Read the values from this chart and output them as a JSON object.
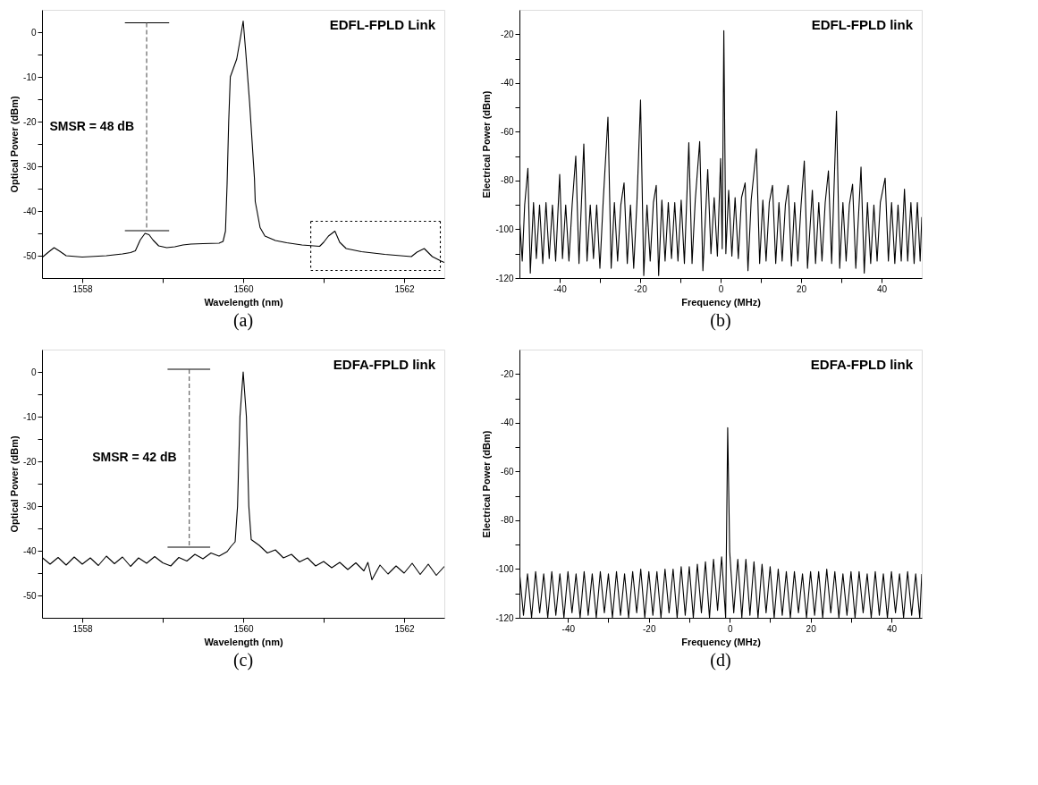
{
  "chart_data": [
    {
      "type": "line",
      "title": "(a)",
      "xlabel": "Wavelength (nm)",
      "ylabel": "Optical Power (dBm)",
      "xlim": [
        1557.5,
        1562.5
      ],
      "ylim": [
        -55,
        5
      ],
      "xticks": [
        1558,
        {
          "value": 1559,
          "label": null
        },
        1560,
        {
          "value": 1561,
          "label": null
        },
        1562
      ],
      "yticks": [
        -50,
        {
          "value": -45,
          "label": null
        },
        -40,
        {
          "value": -35,
          "label": null
        },
        -30,
        {
          "value": -25,
          "label": null
        },
        -20,
        {
          "value": -15,
          "label": null
        },
        -10,
        {
          "value": -5,
          "label": null
        },
        0
      ],
      "annotations": [
        "EDFL-FPLD Link",
        "SMSR = 48 dB"
      ],
      "series": [
        {
          "color": "#000000",
          "x": [
            1557.5,
            1557.58,
            1557.65,
            1557.72,
            1557.8,
            1558.0,
            1558.3,
            1558.5,
            1558.6,
            1558.66,
            1558.72,
            1558.78,
            1558.83,
            1558.88,
            1558.95,
            1559.05,
            1559.15,
            1559.25,
            1559.35,
            1559.5,
            1559.7,
            1559.75,
            1559.78,
            1559.8,
            1559.82,
            1559.84,
            1559.88,
            1559.92,
            1559.97,
            1560.0,
            1560.03,
            1560.08,
            1560.14,
            1560.15,
            1560.17,
            1560.21,
            1560.27,
            1560.4,
            1560.54,
            1560.73,
            1560.95,
            1561.0,
            1561.06,
            1561.14,
            1561.2,
            1561.28,
            1561.47,
            1561.76,
            1562.09,
            1562.16,
            1562.25,
            1562.35,
            1562.46,
            1562.5
          ],
          "values": [
            -50.4,
            -49.2,
            -48.2,
            -49.0,
            -50.0,
            -50.3,
            -50.0,
            -49.6,
            -49.3,
            -48.9,
            -46.5,
            -45.0,
            -45.3,
            -46.5,
            -47.8,
            -48.2,
            -48.0,
            -47.6,
            -47.4,
            -47.3,
            -47.2,
            -46.8,
            -44.5,
            -34,
            -20,
            -10,
            -8,
            -6,
            -0.8,
            2.5,
            -4,
            -15.8,
            -32.7,
            -37.9,
            -39.8,
            -43.7,
            -45.6,
            -46.6,
            -47.1,
            -47.6,
            -47.9,
            -47,
            -45.6,
            -44.5,
            -47,
            -48.4,
            -49.1,
            -49.7,
            -50.2,
            -49.2,
            -48.4,
            -50.2,
            -51.2,
            -51.5
          ]
        },
        {
          "color": "#000000",
          "x": [
            1558.53,
            1559.08
          ],
          "values": [
            2.1,
            2.1
          ]
        },
        {
          "color": "#000000",
          "x": [
            1558.53,
            1559.08
          ],
          "values": [
            -44.4,
            -44.4
          ]
        },
        {
          "color": "#555555",
          "line_style": "dashed",
          "x": [
            1558.8,
            1558.8
          ],
          "values": [
            2.1,
            -44.4
          ]
        },
        {
          "color": "#000000",
          "line_style": "dotted",
          "x": [
            1560.84,
            1562.45
          ],
          "values": [
            -42.3,
            -42.3
          ]
        },
        {
          "color": "#000000",
          "line_style": "dotted",
          "x": [
            1560.84,
            1562.45
          ],
          "values": [
            -53.3,
            -53.3
          ]
        },
        {
          "color": "#000000",
          "line_style": "dotted",
          "x": [
            1560.84,
            1560.84
          ],
          "values": [
            -42.3,
            -53.3
          ]
        },
        {
          "color": "#000000",
          "line_style": "dotted",
          "x": [
            1562.45,
            1562.45
          ],
          "values": [
            -42.3,
            -53.3
          ]
        }
      ]
    },
    {
      "type": "line",
      "title": "(b)",
      "xlabel": "Frequency (MHz)",
      "ylabel": "Electrical Power (dBm)",
      "xlim": [
        -50,
        50
      ],
      "ylim": [
        -120,
        -10
      ],
      "xticks": [
        -40,
        {
          "value": -30,
          "label": null
        },
        -20,
        {
          "value": -10,
          "label": null
        },
        0,
        {
          "value": 10,
          "label": null
        },
        20,
        {
          "value": 30,
          "label": null
        },
        40
      ],
      "yticks": [
        -120,
        {
          "value": -110,
          "label": null
        },
        -100,
        {
          "value": -90,
          "label": null
        },
        -80,
        {
          "value": -70,
          "label": null
        },
        -60,
        {
          "value": -50,
          "label": null
        },
        -40,
        {
          "value": -30,
          "label": null
        },
        -20
      ],
      "annotations": [
        "EDFL-FPLD link"
      ],
      "series": [
        {
          "color": "#000000",
          "x": [
            -50,
            -49.3,
            -48.7,
            -47.9,
            -47.3,
            -46.5,
            -45.8,
            -45,
            -44.2,
            -43.4,
            -42.6,
            -41.8,
            -41,
            -40,
            -39.3,
            -38.5,
            -37.7,
            -36.9,
            -36,
            -35.2,
            -34,
            -33.2,
            -32.4,
            -31.6,
            -30.8,
            -30,
            -29.2,
            -28,
            -27.2,
            -26.4,
            -25.6,
            -24.8,
            -24,
            -23.2,
            -22.4,
            -21.6,
            -20.8,
            -19.9,
            -19.1,
            -18.3,
            -17.5,
            -16.7,
            -16,
            -15.4,
            -14.6,
            -13.8,
            -13,
            -12.2,
            -11.4,
            -10.6,
            -9.8,
            -9,
            -7.9,
            -7.1,
            -6.3,
            -5.2,
            -4.4,
            -3.2,
            -2.4,
            -1.6,
            -0.8,
            0,
            0.4,
            0.8,
            1.3,
            2,
            2.8,
            3.6,
            4.4,
            5.2,
            6.1,
            6.8,
            7.6,
            8.9,
            9.7,
            10.5,
            11.3,
            12.1,
            12.9,
            13.7,
            14.5,
            15.3,
            16.1,
            16.8,
            17.6,
            18.4,
            19.2,
            20,
            20.8,
            21.6,
            22.8,
            23.6,
            24.4,
            25.2,
            26,
            26.8,
            27.6,
            28.8,
            29.6,
            30.4,
            31.2,
            32,
            32.8,
            33.6,
            34.9,
            35.7,
            36.5,
            37.3,
            38.1,
            38.9,
            39.7,
            40.9,
            41.7,
            42.5,
            43.3,
            44.1,
            44.9,
            45.7,
            46.5,
            47.3,
            48.1,
            48.9,
            49.6,
            50
          ],
          "values": [
            -95,
            -113,
            -90,
            -75,
            -118,
            -89,
            -112,
            -90,
            -114,
            -89,
            -112,
            -90,
            -113,
            -77.5,
            -112,
            -90,
            -113,
            -90,
            -70,
            -114,
            -65,
            -113,
            -90,
            -112,
            -90,
            -116,
            -89,
            -54,
            -116,
            -89,
            -113,
            -90,
            -81,
            -114,
            -90,
            -116,
            -89,
            -47,
            -119,
            -90,
            -113,
            -89,
            -82,
            -119,
            -88,
            -113,
            -89,
            -112,
            -89,
            -113,
            -88,
            -114,
            -64.5,
            -114,
            -88,
            -64,
            -117,
            -75.5,
            -110,
            -87,
            -111,
            -71,
            -108,
            -18.5,
            -110,
            -84,
            -111,
            -87,
            -112,
            -87,
            -81,
            -117,
            -88,
            -67,
            -114,
            -88,
            -113,
            -89,
            -82,
            -114,
            -89,
            -113,
            -90,
            -82,
            -115,
            -89,
            -113,
            -90,
            -72,
            -116,
            -84,
            -114,
            -89,
            -113,
            -89,
            -76,
            -114,
            -51.5,
            -116,
            -89,
            -113,
            -90,
            -81.5,
            -116,
            -74.5,
            -118,
            -89,
            -114,
            -90,
            -113,
            -89,
            -79,
            -113,
            -89,
            -114,
            -90,
            -113,
            -83.5,
            -113,
            -89,
            -114,
            -89,
            -113,
            -95
          ]
        }
      ]
    },
    {
      "type": "line",
      "title": "(c)",
      "xlabel": "Wavelength (nm)",
      "ylabel": "Optical Power (dBm)",
      "xlim": [
        1557.5,
        1562.5
      ],
      "ylim": [
        -55,
        5
      ],
      "xticks": [
        1558,
        {
          "value": 1559,
          "label": null
        },
        1560,
        {
          "value": 1561,
          "label": null
        },
        1562
      ],
      "yticks": [
        -50,
        {
          "value": -45,
          "label": null
        },
        -40,
        {
          "value": -35,
          "label": null
        },
        -30,
        {
          "value": -25,
          "label": null
        },
        -20,
        {
          "value": -15,
          "label": null
        },
        -10,
        {
          "value": -5,
          "label": null
        },
        0
      ],
      "annotations": [
        "EDFA-FPLD link",
        "SMSR = 42 dB"
      ],
      "series": [
        {
          "color": "#000000",
          "x": [
            1557.5,
            1557.6,
            1557.7,
            1557.8,
            1557.9,
            1558.0,
            1558.1,
            1558.2,
            1558.3,
            1558.4,
            1558.5,
            1558.6,
            1558.7,
            1558.8,
            1558.9,
            1559.0,
            1559.1,
            1559.2,
            1559.3,
            1559.4,
            1559.5,
            1559.6,
            1559.7,
            1559.8,
            1559.85,
            1559.9,
            1559.93,
            1559.96,
            1560.0,
            1560.04,
            1560.07,
            1560.1,
            1560.2,
            1560.3,
            1560.4,
            1560.5,
            1560.6,
            1560.7,
            1560.8,
            1560.9,
            1561.0,
            1561.1,
            1561.2,
            1561.3,
            1561.4,
            1561.5,
            1561.55,
            1561.6,
            1561.7,
            1561.8,
            1561.9,
            1562.0,
            1562.1,
            1562.2,
            1562.3,
            1562.4,
            1562.5
          ],
          "values": [
            -41.5,
            -43,
            -41.5,
            -43.2,
            -41.4,
            -43,
            -41.6,
            -43.3,
            -41.2,
            -42.9,
            -41.4,
            -43.5,
            -41.6,
            -42.8,
            -41.3,
            -42.7,
            -43.4,
            -41.5,
            -42.3,
            -40.8,
            -41.8,
            -40.5,
            -41.2,
            -40.2,
            -39,
            -38,
            -30,
            -10,
            0,
            -10,
            -30,
            -37.5,
            -38.8,
            -40.5,
            -39.8,
            -41.6,
            -40.8,
            -42.5,
            -41.6,
            -43.4,
            -42.4,
            -43.8,
            -42.6,
            -44.2,
            -42.7,
            -44.5,
            -42.6,
            -46.5,
            -43.2,
            -45.2,
            -43.4,
            -45,
            -42.8,
            -45.3,
            -43,
            -45.5,
            -43.5
          ]
        },
        {
          "color": "#000000",
          "x": [
            1559.06,
            1559.59
          ],
          "values": [
            0.6,
            0.6
          ]
        },
        {
          "color": "#000000",
          "x": [
            1559.06,
            1559.59
          ],
          "values": [
            -39.2,
            -39.2
          ]
        },
        {
          "color": "#555555",
          "line_style": "dashed",
          "x": [
            1559.33,
            1559.33
          ],
          "values": [
            0.6,
            -38.8
          ]
        }
      ]
    },
    {
      "type": "line",
      "title": "(d)",
      "xlabel": "Frequency (MHz)",
      "ylabel": "Electrical Power (dBm)",
      "xlim": [
        -52,
        47.5
      ],
      "ylim": [
        -120,
        -10
      ],
      "xticks": [
        -40,
        {
          "value": -30,
          "label": null
        },
        -20,
        {
          "value": -10,
          "label": null
        },
        0,
        {
          "value": 10,
          "label": null
        },
        20,
        {
          "value": 30,
          "label": null
        },
        40
      ],
      "yticks": [
        -120,
        {
          "value": -110,
          "label": null
        },
        -100,
        {
          "value": -90,
          "label": null
        },
        -80,
        {
          "value": -70,
          "label": null
        },
        -60,
        {
          "value": -50,
          "label": null
        },
        -40,
        {
          "value": -30,
          "label": null
        },
        -20
      ],
      "annotations": [
        "EDFA-FPLD link"
      ],
      "series": [
        {
          "color": "#000000",
          "x": [
            -52,
            -51,
            -50,
            -49,
            -48,
            -47,
            -46,
            -45,
            -44,
            -43,
            -42,
            -41,
            -40,
            -39,
            -38,
            -37,
            -36,
            -35,
            -34,
            -33,
            -32,
            -31,
            -30,
            -29,
            -28,
            -27,
            -26,
            -25,
            -24,
            -23,
            -22,
            -21,
            -20,
            -19,
            -18,
            -17,
            -16,
            -15,
            -14,
            -13,
            -12,
            -11,
            -10,
            -9,
            -8,
            -7,
            -6,
            -5,
            -4,
            -3,
            -2,
            -1,
            -0.5,
            0,
            1,
            2,
            3,
            4,
            5,
            6,
            7,
            8,
            9,
            10,
            11,
            12,
            13,
            14,
            15,
            16,
            17,
            18,
            19,
            20,
            21,
            22,
            23,
            24,
            25,
            26,
            27,
            28,
            29,
            30,
            31,
            32,
            33,
            34,
            35,
            36,
            37,
            38,
            39,
            40,
            41,
            42,
            43,
            44,
            45,
            46,
            47,
            47.5
          ],
          "values": [
            -101,
            -119,
            -102,
            -120,
            -101,
            -118,
            -102,
            -120,
            -101,
            -119,
            -102,
            -120,
            -101,
            -118,
            -102,
            -120,
            -101,
            -119,
            -102,
            -120,
            -101,
            -118,
            -102,
            -120,
            -101,
            -119,
            -102,
            -120,
            -101,
            -118,
            -100,
            -120,
            -101,
            -119,
            -101,
            -120,
            -100,
            -118,
            -100,
            -120,
            -99,
            -119,
            -99,
            -120,
            -98,
            -118,
            -97,
            -120,
            -96,
            -117,
            -95,
            -120,
            -42,
            -93,
            -118,
            -96,
            -120,
            -96,
            -119,
            -97,
            -120,
            -98,
            -118,
            -99,
            -120,
            -100,
            -119,
            -101,
            -120,
            -101,
            -118,
            -102,
            -120,
            -101,
            -119,
            -101,
            -120,
            -100,
            -118,
            -101,
            -120,
            -102,
            -119,
            -101,
            -120,
            -101,
            -118,
            -102,
            -120,
            -101,
            -119,
            -102,
            -120,
            -101,
            -118,
            -102,
            -120,
            -101,
            -119,
            -102,
            -120,
            -102
          ]
        }
      ]
    }
  ]
}
